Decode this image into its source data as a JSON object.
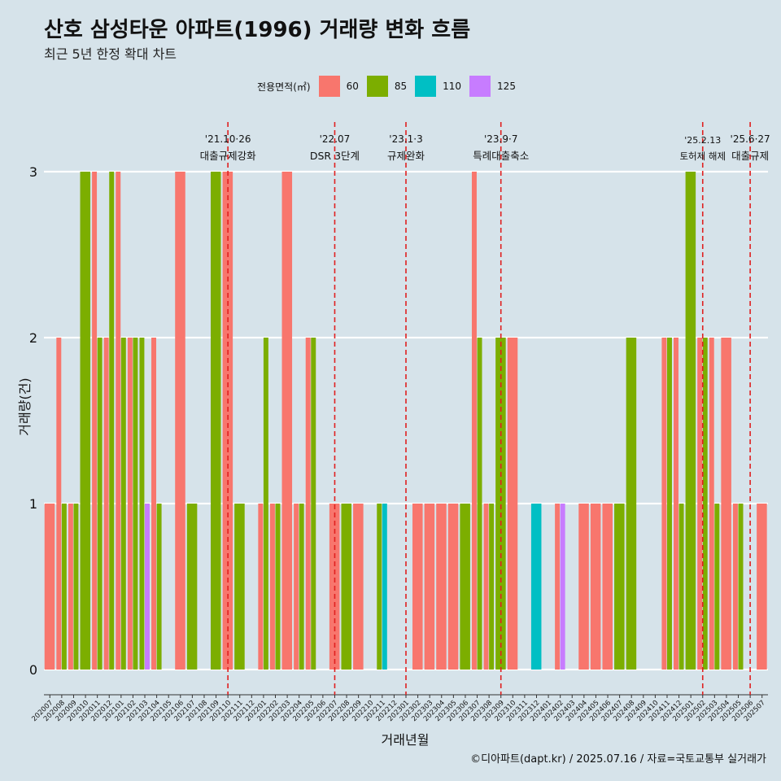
{
  "title": "산호 삼성타운 아파트(1996) 거래량 변화 흐름",
  "subtitle": "최근 5년 한정 확대 차트",
  "caption": "©디아파트(dapt.kr) / 2025.07.16 / 자료=국토교통부 실거래가",
  "legend": {
    "title": "전용면적(㎡)",
    "items": [
      {
        "label": "60",
        "color": "#f8766d"
      },
      {
        "label": "85",
        "color": "#7cae00"
      },
      {
        "label": "110",
        "color": "#00bfc4"
      },
      {
        "label": "125",
        "color": "#c77cff"
      }
    ]
  },
  "chart_data": {
    "type": "bar",
    "title": "산호 삼성타운 아파트(1996) 거래량 변화 흐름",
    "subtitle": "최근 5년 한정 확대 차트",
    "xlabel": "거래년월",
    "ylabel": "거래량(건)",
    "ylim": [
      0,
      3
    ],
    "yticks": [
      0,
      1,
      2,
      3
    ],
    "legend_position": "top",
    "grid": "horizontal",
    "categories": [
      "202007",
      "202008",
      "202009",
      "202010",
      "202011",
      "202012",
      "202101",
      "202102",
      "202103",
      "202104",
      "202105",
      "202106",
      "202107",
      "202108",
      "202109",
      "202110",
      "202111",
      "202112",
      "202201",
      "202202",
      "202203",
      "202204",
      "202205",
      "202206",
      "202207",
      "202208",
      "202209",
      "202210",
      "202211",
      "202212",
      "202301",
      "202302",
      "202303",
      "202304",
      "202305",
      "202306",
      "202307",
      "202308",
      "202309",
      "202310",
      "202311",
      "202312",
      "202401",
      "202402",
      "202403",
      "202404",
      "202405",
      "202406",
      "202407",
      "202408",
      "202409",
      "202410",
      "202411",
      "202412",
      "202501",
      "202502",
      "202503",
      "202504",
      "202505",
      "202506",
      "202507"
    ],
    "series": [
      {
        "name": "60",
        "color": "#f8766d",
        "values": [
          1,
          2,
          1,
          0,
          3,
          2,
          3,
          2,
          0,
          2,
          0,
          3,
          0,
          0,
          0,
          3,
          0,
          0,
          1,
          1,
          3,
          1,
          2,
          0,
          1,
          0,
          1,
          0,
          0,
          0,
          0,
          1,
          1,
          1,
          1,
          0,
          3,
          1,
          0,
          2,
          0,
          0,
          0,
          1,
          0,
          1,
          1,
          1,
          0,
          0,
          0,
          0,
          2,
          2,
          0,
          2,
          2,
          2,
          1,
          0,
          1
        ]
      },
      {
        "name": "85",
        "color": "#7cae00",
        "values": [
          0,
          1,
          1,
          3,
          2,
          3,
          2,
          2,
          2,
          1,
          0,
          0,
          1,
          0,
          3,
          0,
          1,
          0,
          2,
          1,
          0,
          1,
          2,
          0,
          0,
          1,
          0,
          0,
          1,
          0,
          0,
          0,
          0,
          0,
          0,
          1,
          2,
          1,
          2,
          0,
          0,
          0,
          0,
          0,
          0,
          0,
          0,
          0,
          1,
          2,
          0,
          0,
          2,
          1,
          3,
          2,
          1,
          0,
          1,
          0,
          0
        ]
      },
      {
        "name": "110",
        "color": "#00bfc4",
        "values": [
          0,
          0,
          0,
          0,
          0,
          0,
          0,
          0,
          0,
          0,
          0,
          0,
          0,
          0,
          0,
          0,
          0,
          0,
          0,
          0,
          0,
          0,
          0,
          0,
          0,
          0,
          0,
          0,
          1,
          0,
          0,
          0,
          0,
          0,
          0,
          0,
          0,
          0,
          0,
          0,
          0,
          1,
          0,
          0,
          0,
          0,
          0,
          0,
          0,
          0,
          0,
          0,
          0,
          0,
          0,
          0,
          0,
          0,
          0,
          0,
          0
        ]
      },
      {
        "name": "125",
        "color": "#c77cff",
        "values": [
          0,
          0,
          0,
          0,
          0,
          0,
          0,
          0,
          1,
          0,
          0,
          0,
          0,
          0,
          0,
          0,
          0,
          0,
          0,
          0,
          0,
          0,
          0,
          0,
          0,
          0,
          0,
          0,
          0,
          0,
          0,
          0,
          0,
          0,
          0,
          0,
          0,
          0,
          0,
          0,
          0,
          0,
          0,
          1,
          0,
          0,
          0,
          0,
          0,
          0,
          0,
          0,
          0,
          0,
          0,
          0,
          0,
          0,
          0,
          0,
          0
        ]
      }
    ],
    "annotations": [
      {
        "category": "202110",
        "date": "'21.10·26",
        "label": "대출규제강화"
      },
      {
        "category": "202207",
        "date": "'22.07",
        "label": "DSR 3단계"
      },
      {
        "category": "202301",
        "date": "'23.1·3",
        "label": "규제완화"
      },
      {
        "category": "202309",
        "date": "'23.9·7",
        "label": "특례대출축소"
      },
      {
        "category": "202502",
        "date": "'25.2.13",
        "label": "토허제 해제"
      },
      {
        "category": "202506",
        "date": "'25.6·27",
        "label": "대출규제"
      }
    ]
  }
}
